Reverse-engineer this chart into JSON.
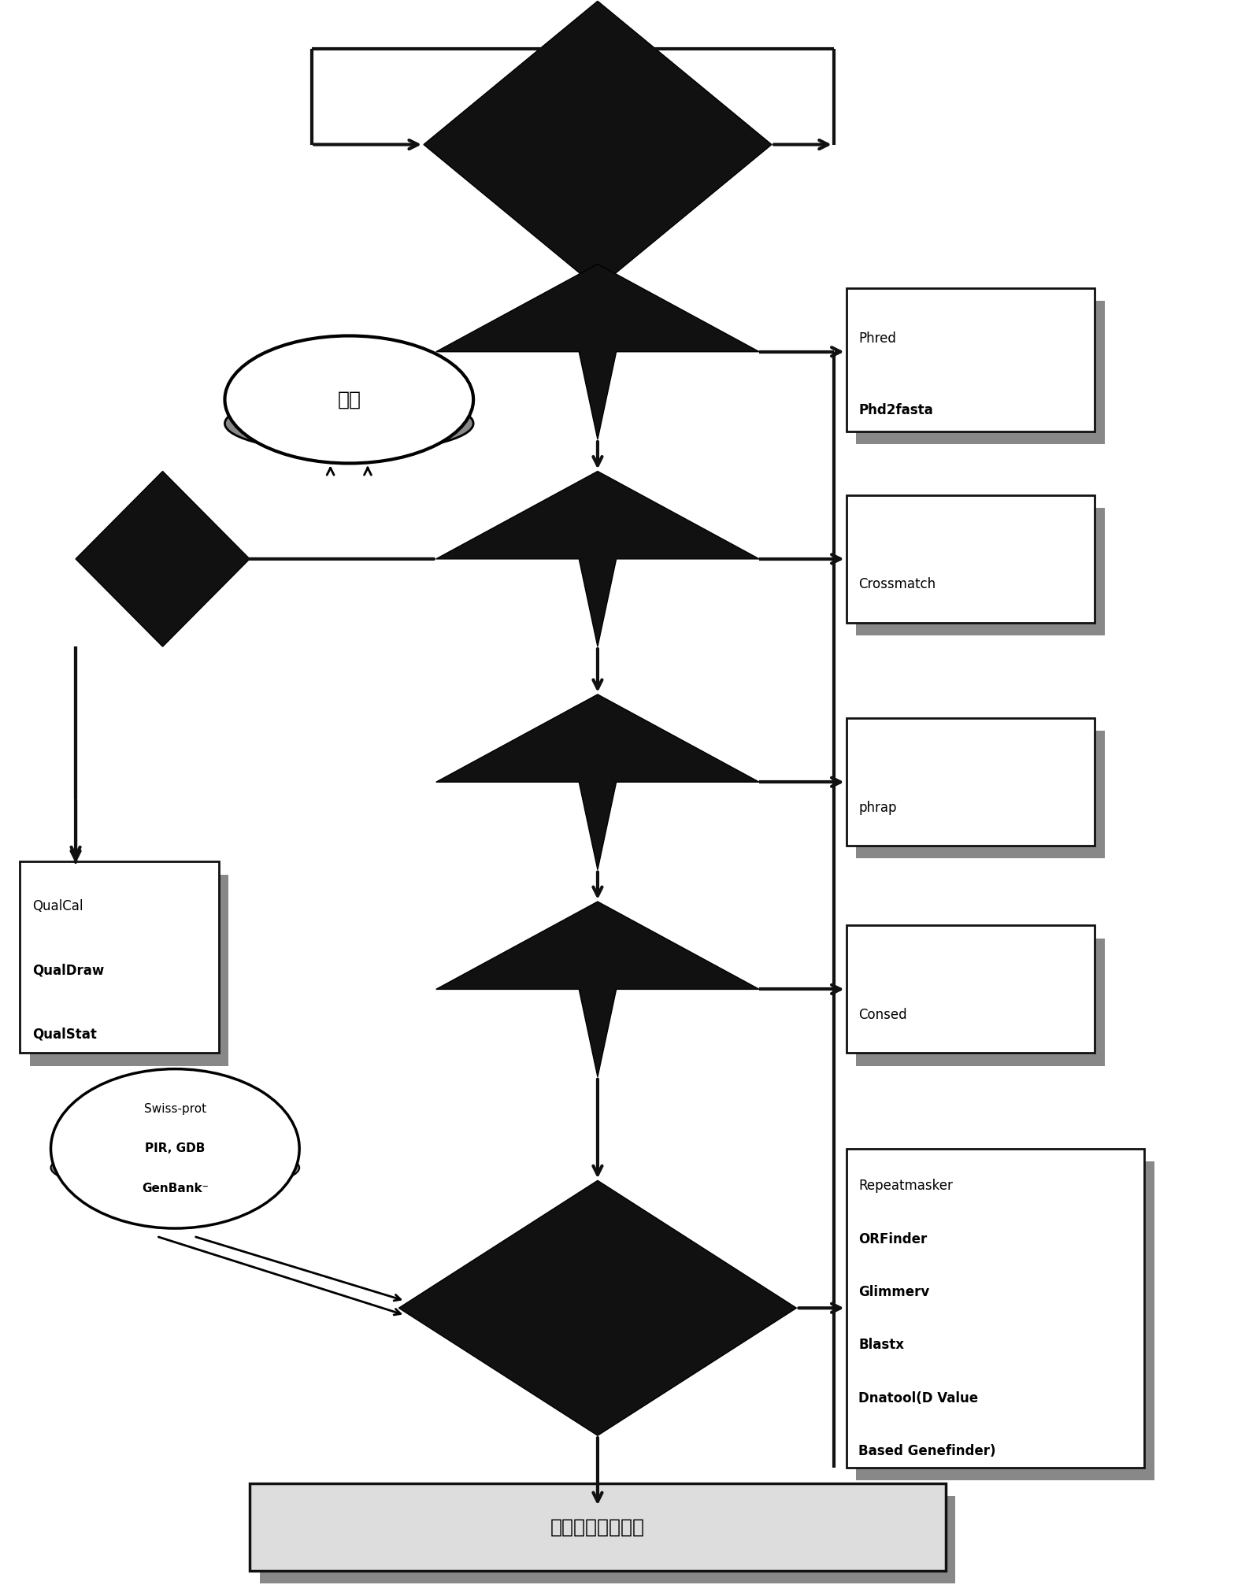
{
  "bg_color": "#ffffff",
  "diamond_color": "#111111",
  "arrow_color": "#111111",
  "box_color": "#ffffff",
  "box_edge_color": "#111111",
  "shadow_color": "#888888",
  "text_color": "#000000",
  "title_text": "测序结果分析分类",
  "carrier_text": "载体",
  "box_phred_line1": "Phred",
  "box_phred_line2": "Phd2fasta",
  "box_crossmatch": "Crossmatch",
  "box_phrap": "phrap",
  "box_consed": "Consed",
  "box_qual_lines": [
    "QualCal",
    "QualDraw",
    "QualStat"
  ],
  "box_swiss_lines": [
    "Swiss-prot",
    "PIR, GDB",
    "GenBank⁻"
  ],
  "box_repeat_lines": [
    "Repeatmasker",
    "ORFinder",
    "Glimmerv",
    "Blastx",
    "Dnatool(D Value",
    "Based Genefinder)"
  ],
  "figsize": [
    15.81,
    20.27
  ]
}
